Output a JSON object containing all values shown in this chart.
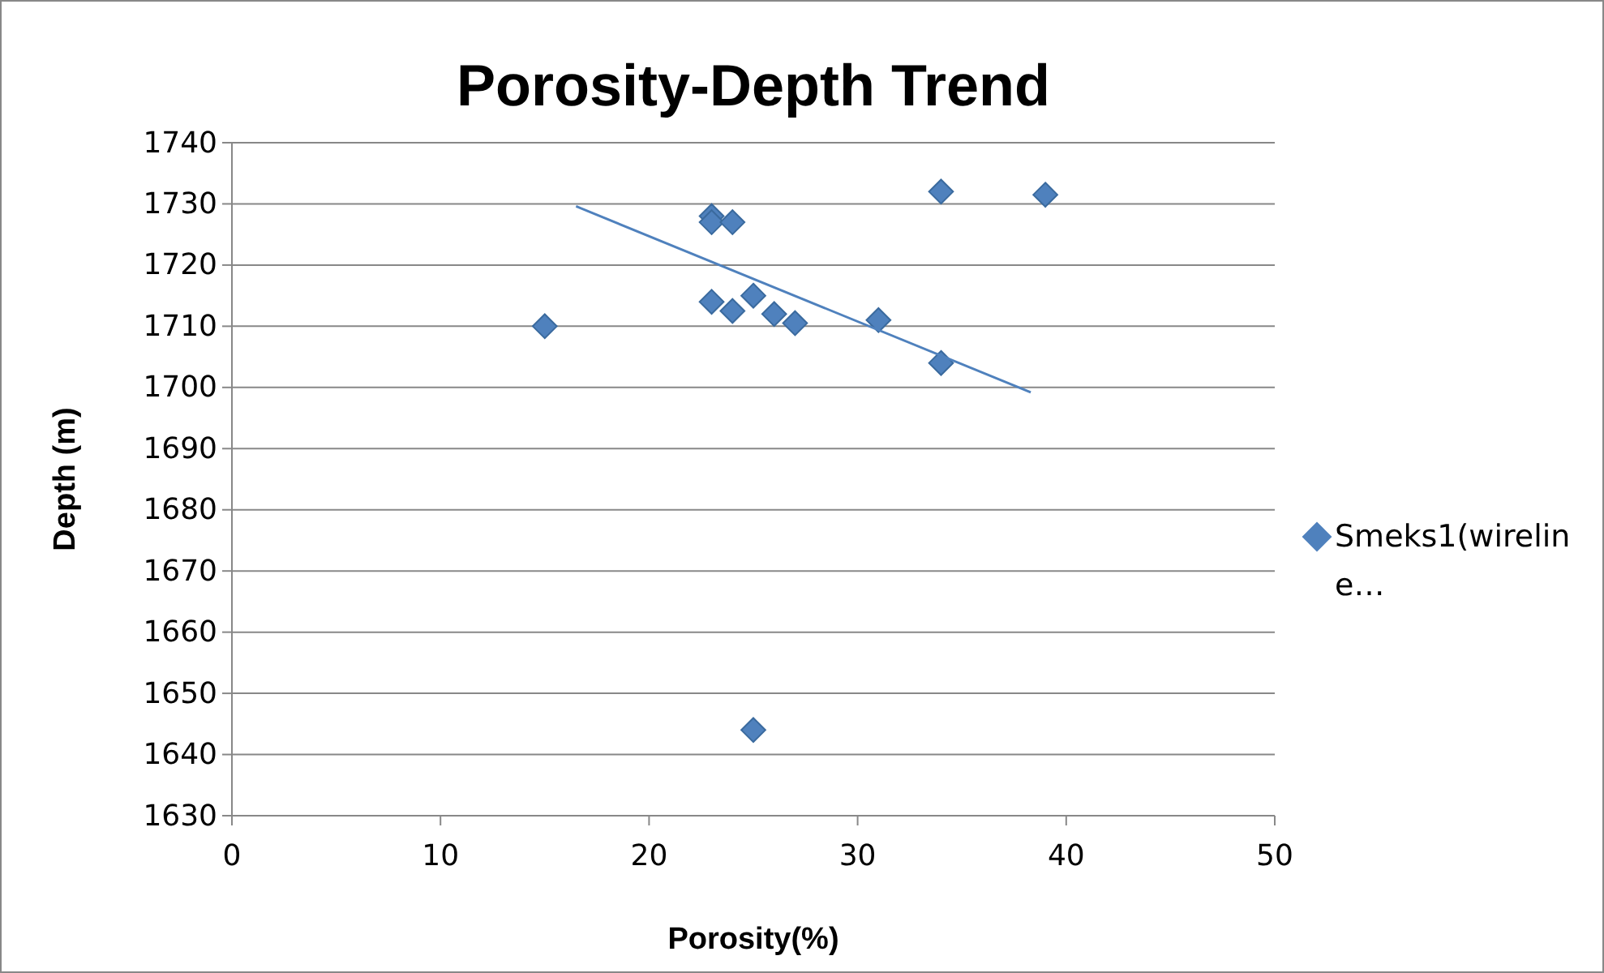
{
  "chart_data": {
    "type": "scatter",
    "title": "Porosity-Depth Trend",
    "xlabel": "Porosity(%)",
    "ylabel": "Depth (m)",
    "xlim": [
      0,
      50
    ],
    "xticks": [
      0,
      10,
      20,
      30,
      40,
      50
    ],
    "ylim": [
      1630,
      1740
    ],
    "yticks": [
      1630,
      1640,
      1650,
      1660,
      1670,
      1680,
      1690,
      1700,
      1710,
      1720,
      1730,
      1740
    ],
    "grid": "y",
    "legend": "right",
    "marker": "diamond",
    "series": [
      {
        "name": "Smeks1(wireline…",
        "color": "#4f81bd",
        "x": [
          15,
          23,
          23,
          24,
          23,
          24,
          25,
          26,
          27,
          31,
          34,
          34,
          39,
          25
        ],
        "values": [
          1710,
          1728,
          1727,
          1727,
          1714,
          1712.5,
          1715,
          1712,
          1710.5,
          1711,
          1704,
          1732,
          1731.5,
          1644
        ]
      },
      {
        "type": "line",
        "color": "#4f81bd",
        "marker": "none",
        "x": [
          16.5,
          38.3
        ],
        "values": [
          1729.6,
          1699.2
        ]
      }
    ]
  }
}
